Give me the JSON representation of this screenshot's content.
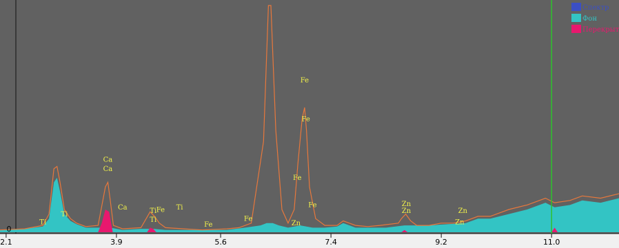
{
  "chart_data": {
    "type": "area",
    "title": "",
    "xlabel": "",
    "ylabel": "",
    "xlim": [
      2.0,
      12.1
    ],
    "ylim": [
      0,
      100
    ],
    "y_tick_labels": [
      {
        "value": 0,
        "label": "0"
      }
    ],
    "x_ticks": [
      {
        "value": 2.1,
        "label": "2.1"
      },
      {
        "value": 3.9,
        "label": "3.9"
      },
      {
        "value": 5.6,
        "label": "5.6"
      },
      {
        "value": 7.4,
        "label": "7.4"
      },
      {
        "value": 9.2,
        "label": "9.2"
      },
      {
        "value": 11.0,
        "label": "11.0"
      }
    ],
    "grid": false,
    "legend_position": "top-right",
    "marker_line_x": 11.0,
    "series": [
      {
        "name": "Спектр",
        "color": "#e8783c",
        "kind": "line",
        "points": [
          [
            2.0,
            1
          ],
          [
            2.4,
            1.5
          ],
          [
            2.7,
            3
          ],
          [
            2.8,
            8
          ],
          [
            2.88,
            28
          ],
          [
            2.93,
            29
          ],
          [
            2.98,
            22
          ],
          [
            3.05,
            10
          ],
          [
            3.15,
            6
          ],
          [
            3.25,
            4
          ],
          [
            3.4,
            2.5
          ],
          [
            3.6,
            3
          ],
          [
            3.65,
            10
          ],
          [
            3.72,
            20
          ],
          [
            3.76,
            22
          ],
          [
            3.8,
            14
          ],
          [
            3.85,
            3
          ],
          [
            4.0,
            1.5
          ],
          [
            4.3,
            2
          ],
          [
            4.45,
            9
          ],
          [
            4.52,
            7
          ],
          [
            4.6,
            4
          ],
          [
            4.7,
            2
          ],
          [
            5.0,
            1.5
          ],
          [
            5.3,
            1
          ],
          [
            5.7,
            1.5
          ],
          [
            5.9,
            2
          ],
          [
            6.1,
            4
          ],
          [
            6.3,
            40
          ],
          [
            6.38,
            100
          ],
          [
            6.42,
            100
          ],
          [
            6.5,
            45
          ],
          [
            6.6,
            10
          ],
          [
            6.7,
            4
          ],
          [
            6.8,
            10
          ],
          [
            6.86,
            30
          ],
          [
            6.93,
            50
          ],
          [
            6.97,
            55
          ],
          [
            7.0,
            45
          ],
          [
            7.05,
            20
          ],
          [
            7.15,
            6
          ],
          [
            7.3,
            3
          ],
          [
            7.5,
            3
          ],
          [
            7.6,
            5
          ],
          [
            7.8,
            3
          ],
          [
            8.0,
            2.5
          ],
          [
            8.2,
            3
          ],
          [
            8.5,
            4
          ],
          [
            8.55,
            6
          ],
          [
            8.62,
            8
          ],
          [
            8.7,
            5
          ],
          [
            8.8,
            3
          ],
          [
            9.0,
            3
          ],
          [
            9.2,
            4
          ],
          [
            9.4,
            4
          ],
          [
            9.6,
            5
          ],
          [
            9.8,
            7
          ],
          [
            10.0,
            7
          ],
          [
            10.3,
            10
          ],
          [
            10.6,
            12
          ],
          [
            10.9,
            15
          ],
          [
            11.05,
            13
          ],
          [
            11.3,
            14
          ],
          [
            11.5,
            16
          ],
          [
            11.8,
            15
          ],
          [
            12.1,
            17
          ]
        ]
      },
      {
        "name": "Фон",
        "color": "#33c4c4",
        "kind": "area",
        "points": [
          [
            2.0,
            1
          ],
          [
            2.4,
            1.5
          ],
          [
            2.7,
            2.5
          ],
          [
            2.8,
            6
          ],
          [
            2.88,
            22
          ],
          [
            2.93,
            24
          ],
          [
            2.98,
            18
          ],
          [
            3.05,
            8
          ],
          [
            3.15,
            5
          ],
          [
            3.25,
            3.5
          ],
          [
            3.4,
            2
          ],
          [
            3.6,
            2
          ],
          [
            3.65,
            2
          ],
          [
            3.72,
            3
          ],
          [
            3.8,
            2
          ],
          [
            4.0,
            1
          ],
          [
            4.3,
            1.5
          ],
          [
            4.5,
            1.5
          ],
          [
            4.7,
            1
          ],
          [
            5.0,
            1
          ],
          [
            5.3,
            1
          ],
          [
            5.7,
            1
          ],
          [
            6.0,
            2
          ],
          [
            6.25,
            3
          ],
          [
            6.35,
            4
          ],
          [
            6.45,
            4
          ],
          [
            6.55,
            3
          ],
          [
            6.7,
            2
          ],
          [
            6.9,
            3
          ],
          [
            7.1,
            2
          ],
          [
            7.3,
            2
          ],
          [
            7.5,
            2.5
          ],
          [
            7.6,
            4
          ],
          [
            7.8,
            2
          ],
          [
            8.0,
            2
          ],
          [
            8.3,
            2
          ],
          [
            8.6,
            3
          ],
          [
            9.0,
            3
          ],
          [
            9.3,
            3.5
          ],
          [
            9.6,
            4
          ],
          [
            9.8,
            6
          ],
          [
            10.0,
            6
          ],
          [
            10.3,
            8
          ],
          [
            10.6,
            10
          ],
          [
            10.9,
            13
          ],
          [
            11.05,
            11
          ],
          [
            11.3,
            12
          ],
          [
            11.5,
            14
          ],
          [
            11.8,
            13
          ],
          [
            12.1,
            15
          ]
        ]
      },
      {
        "name": "Перекрытие",
        "color": "#e8186e",
        "kind": "area",
        "points": [
          [
            3.6,
            0
          ],
          [
            3.66,
            4
          ],
          [
            3.72,
            10
          ],
          [
            3.78,
            9
          ],
          [
            3.84,
            0
          ],
          [
            4.4,
            0
          ],
          [
            4.45,
            2
          ],
          [
            4.5,
            1.5
          ],
          [
            4.55,
            0
          ],
          [
            8.55,
            0
          ],
          [
            8.6,
            1
          ],
          [
            8.65,
            0
          ],
          [
            11.0,
            0
          ],
          [
            11.05,
            2
          ],
          [
            11.1,
            0
          ]
        ]
      }
    ],
    "peak_labels": [
      {
        "text": "Ti",
        "x": 2.7,
        "y": 3.5
      },
      {
        "text": "Ti",
        "x": 3.05,
        "y": 7
      },
      {
        "text": "Ca",
        "x": 3.76,
        "y": 31
      },
      {
        "text": "Ca",
        "x": 3.76,
        "y": 27
      },
      {
        "text": "Ca",
        "x": 4.0,
        "y": 10
      },
      {
        "text": "Ti",
        "x": 4.5,
        "y": 8.5
      },
      {
        "text": "Ti",
        "x": 4.5,
        "y": 4.5
      },
      {
        "text": "Fe",
        "x": 4.62,
        "y": 9
      },
      {
        "text": "Ti",
        "x": 4.93,
        "y": 10
      },
      {
        "text": "Fe",
        "x": 5.4,
        "y": 2.5
      },
      {
        "text": "Fe",
        "x": 6.05,
        "y": 5
      },
      {
        "text": "Fe",
        "x": 6.97,
        "y": 66
      },
      {
        "text": "Fe",
        "x": 6.99,
        "y": 49
      },
      {
        "text": "Fe",
        "x": 6.85,
        "y": 23
      },
      {
        "text": "Fe",
        "x": 7.1,
        "y": 11
      },
      {
        "text": "Zn",
        "x": 6.83,
        "y": 3
      },
      {
        "text": "Zn",
        "x": 8.63,
        "y": 11.5
      },
      {
        "text": "Zn",
        "x": 8.63,
        "y": 8.5
      },
      {
        "text": "Zn",
        "x": 9.55,
        "y": 8.5
      },
      {
        "text": "Zn",
        "x": 9.5,
        "y": 3.5
      }
    ]
  }
}
